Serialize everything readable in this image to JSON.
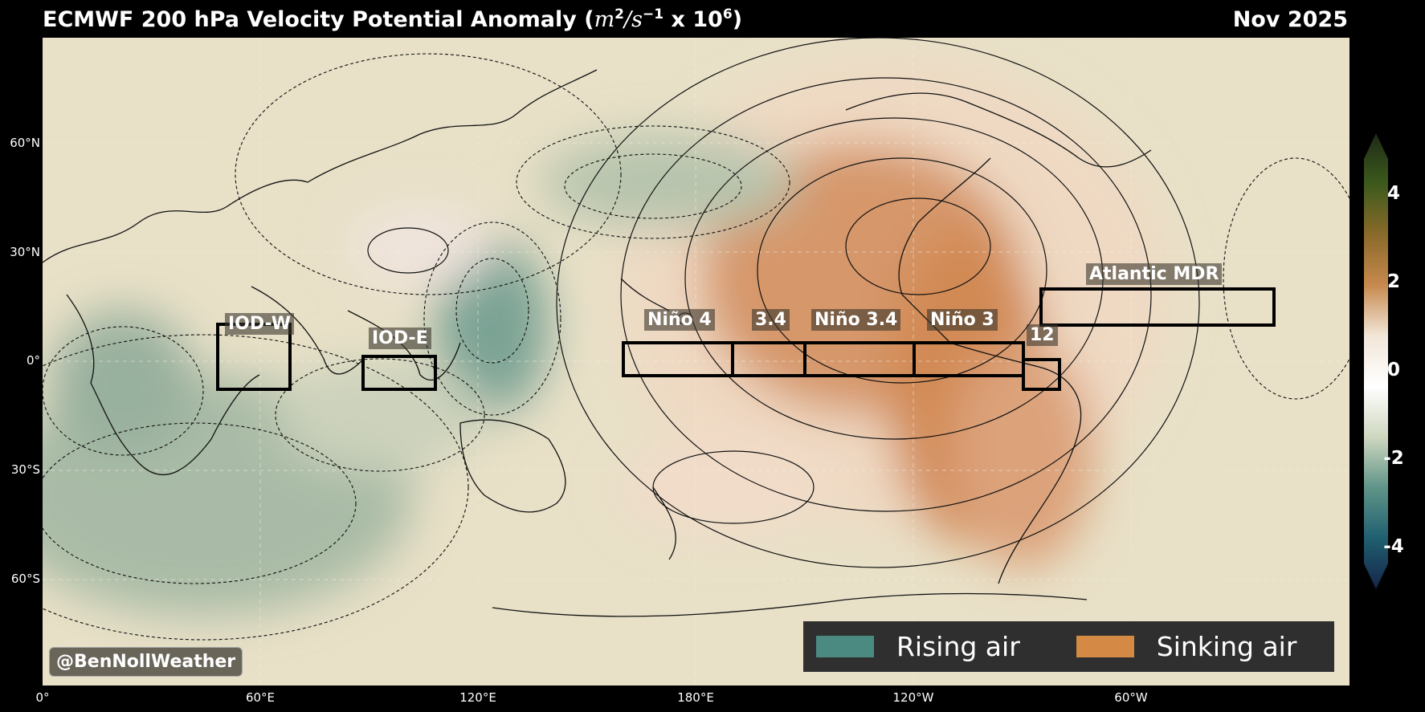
{
  "header": {
    "title_text": "ECMWF 200 hPa Velocity Potential Anomaly (",
    "title_unit_m": "m",
    "title_unit_m_exp": "2",
    "title_unit_s": "/s",
    "title_unit_s_exp": "−1",
    "title_unit_tail": " x 10",
    "title_unit_tail_exp": "6",
    "title_close": ")",
    "period": "Nov 2025"
  },
  "axes": {
    "lat_labels": [
      "60°N",
      "30°N",
      "0°",
      "30°S",
      "60°S"
    ],
    "lon_labels": [
      "0°",
      "60°E",
      "120°E",
      "180°E",
      "120°W",
      "60°W"
    ]
  },
  "regions": [
    {
      "name": "iod-w",
      "label": "IOD-W"
    },
    {
      "name": "iod-e",
      "label": "IOD-E"
    },
    {
      "name": "nino-4",
      "label": "Niño 4"
    },
    {
      "name": "nino-3-4-west",
      "label": "3.4"
    },
    {
      "name": "nino-3-4",
      "label": "Niño 3.4"
    },
    {
      "name": "nino-3",
      "label": "Niño 3"
    },
    {
      "name": "nino-12",
      "label": "12"
    },
    {
      "name": "atlantic-mdr",
      "label": "Atlantic MDR"
    }
  ],
  "legend": {
    "rising_label": "Rising air",
    "rising_color": "#4a8a80",
    "sinking_label": "Sinking air",
    "sinking_color": "#d48a45"
  },
  "colorbar": {
    "ticks": [
      "4",
      "2",
      "0",
      "-2",
      "-4"
    ],
    "colors_top_to_bottom": [
      "#1e2a16",
      "#3c5a1c",
      "#8a6a2a",
      "#c7894e",
      "#f2e6d8",
      "#ffffff",
      "#cfd7c0",
      "#5f9488",
      "#1f5f6f",
      "#15244a"
    ]
  },
  "credit": "@BenNollWeather"
}
